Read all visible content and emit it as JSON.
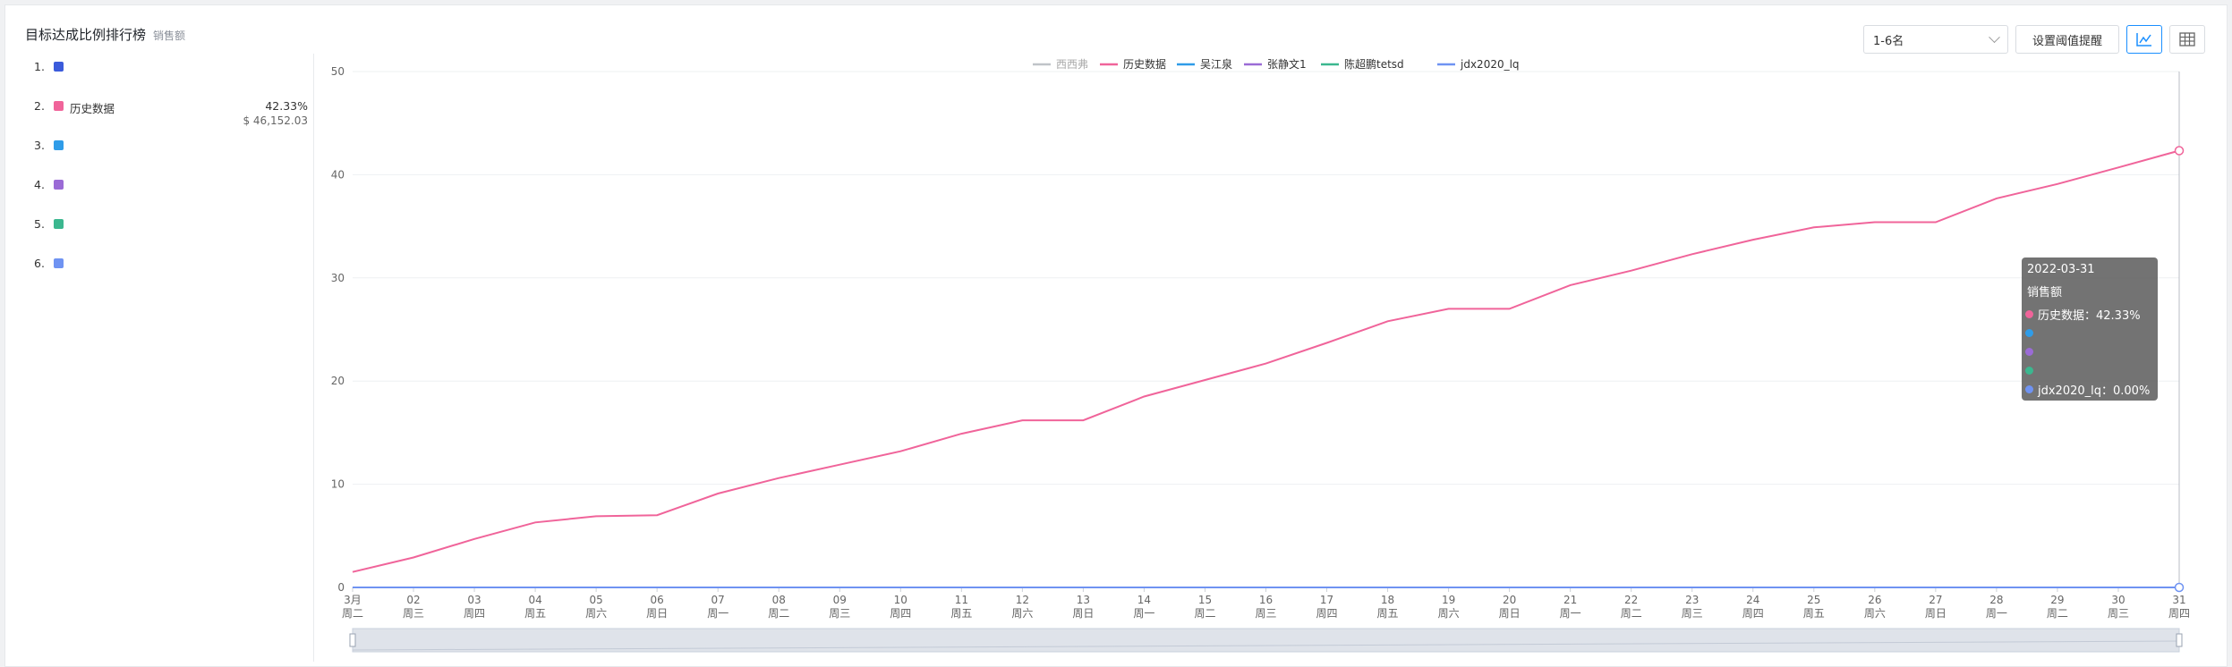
{
  "header": {
    "title": "目标达成比例排行榜",
    "subtitle": "销售额"
  },
  "toolbar": {
    "range_select": "1-6名",
    "threshold_button": "设置阈值提醒",
    "chart_view_icon": "line-chart-icon",
    "table_view_icon": "table-icon"
  },
  "colors": {
    "accent": "#1a8fff"
  },
  "ranking": [
    {
      "no": "1.",
      "name": "",
      "color": "#3b5bdb",
      "pct": "",
      "amount": ""
    },
    {
      "no": "2.",
      "name": "历史数据",
      "color": "#f0649a",
      "pct": "42.33%",
      "amount": "$ 46,152.03"
    },
    {
      "no": "3.",
      "name": "",
      "color": "#2f9ce8",
      "pct": "",
      "amount": ""
    },
    {
      "no": "4.",
      "name": "",
      "color": "#9b6bd6",
      "pct": "",
      "amount": ""
    },
    {
      "no": "5.",
      "name": "",
      "color": "#3bb78f",
      "pct": "",
      "amount": ""
    },
    {
      "no": "6.",
      "name": "",
      "color": "#6f93f2",
      "pct": "",
      "amount": ""
    }
  ],
  "tooltip": {
    "date": "2022-03-31",
    "metric": "销售额",
    "rows": [
      {
        "label": "历史数据：42.33%",
        "color": "#f0649a"
      },
      {
        "label": "",
        "color": "#2f9ce8"
      },
      {
        "label": "",
        "color": "#9b6bd6"
      },
      {
        "label": "",
        "color": "#3bb78f"
      },
      {
        "label": "jdx2020_lq：0.00%",
        "color": "#6f93f2"
      }
    ]
  },
  "chart_data": {
    "type": "line",
    "legend_position": "top",
    "ylim": [
      0,
      50
    ],
    "yticks": [
      0,
      10,
      20,
      30,
      40,
      50
    ],
    "x_days": [
      "3月",
      "02",
      "03",
      "04",
      "05",
      "06",
      "07",
      "08",
      "09",
      "10",
      "11",
      "12",
      "13",
      "14",
      "15",
      "16",
      "17",
      "18",
      "19",
      "20",
      "21",
      "22",
      "23",
      "24",
      "25",
      "26",
      "27",
      "28",
      "29",
      "30",
      "31"
    ],
    "x_weekdays": [
      "周二",
      "周三",
      "周四",
      "周五",
      "周六",
      "周日",
      "周一",
      "周二",
      "周三",
      "周四",
      "周五",
      "周六",
      "周日",
      "周一",
      "周二",
      "周三",
      "周四",
      "周五",
      "周六",
      "周日",
      "周一",
      "周二",
      "周三",
      "周四",
      "周五",
      "周六",
      "周日",
      "周一",
      "周二",
      "周三",
      "周四"
    ],
    "series": [
      {
        "name": "西西弗",
        "color": "#c0c3c8",
        "values": null
      },
      {
        "name": "历史数据",
        "color": "#f0649a",
        "values": [
          1.5,
          2.9,
          4.7,
          6.3,
          6.9,
          7.0,
          9.1,
          10.6,
          11.9,
          13.2,
          14.9,
          16.2,
          16.2,
          18.5,
          20.1,
          21.7,
          23.7,
          25.8,
          27.0,
          27.0,
          29.3,
          30.7,
          32.3,
          33.7,
          34.9,
          35.4,
          35.4,
          37.7,
          39.1,
          40.7,
          42.33
        ]
      },
      {
        "name": "吴江泉",
        "color": "#2f9ce8",
        "values": [
          0,
          0,
          0,
          0,
          0,
          0,
          0,
          0,
          0,
          0,
          0,
          0,
          0,
          0,
          0,
          0,
          0,
          0,
          0,
          0,
          0,
          0,
          0,
          0,
          0,
          0,
          0,
          0,
          0,
          0,
          0
        ]
      },
      {
        "name": "张静文1",
        "color": "#9b6bd6",
        "values": [
          0,
          0,
          0,
          0,
          0,
          0,
          0,
          0,
          0,
          0,
          0,
          0,
          0,
          0,
          0,
          0,
          0,
          0,
          0,
          0,
          0,
          0,
          0,
          0,
          0,
          0,
          0,
          0,
          0,
          0,
          0
        ]
      },
      {
        "name": "陈超鹏tetsd",
        "color": "#3bb78f",
        "values": [
          0,
          0,
          0,
          0,
          0,
          0,
          0,
          0,
          0,
          0,
          0,
          0,
          0,
          0,
          0,
          0,
          0,
          0,
          0,
          0,
          0,
          0,
          0,
          0,
          0,
          0,
          0,
          0,
          0,
          0,
          0
        ]
      },
      {
        "name": "jdx2020_lq",
        "color": "#6f93f2",
        "values": [
          0,
          0,
          0,
          0,
          0,
          0,
          0,
          0,
          0,
          0,
          0,
          0,
          0,
          0,
          0,
          0,
          0,
          0,
          0,
          0,
          0,
          0,
          0,
          0,
          0,
          0,
          0,
          0,
          0,
          0,
          0
        ]
      }
    ]
  }
}
